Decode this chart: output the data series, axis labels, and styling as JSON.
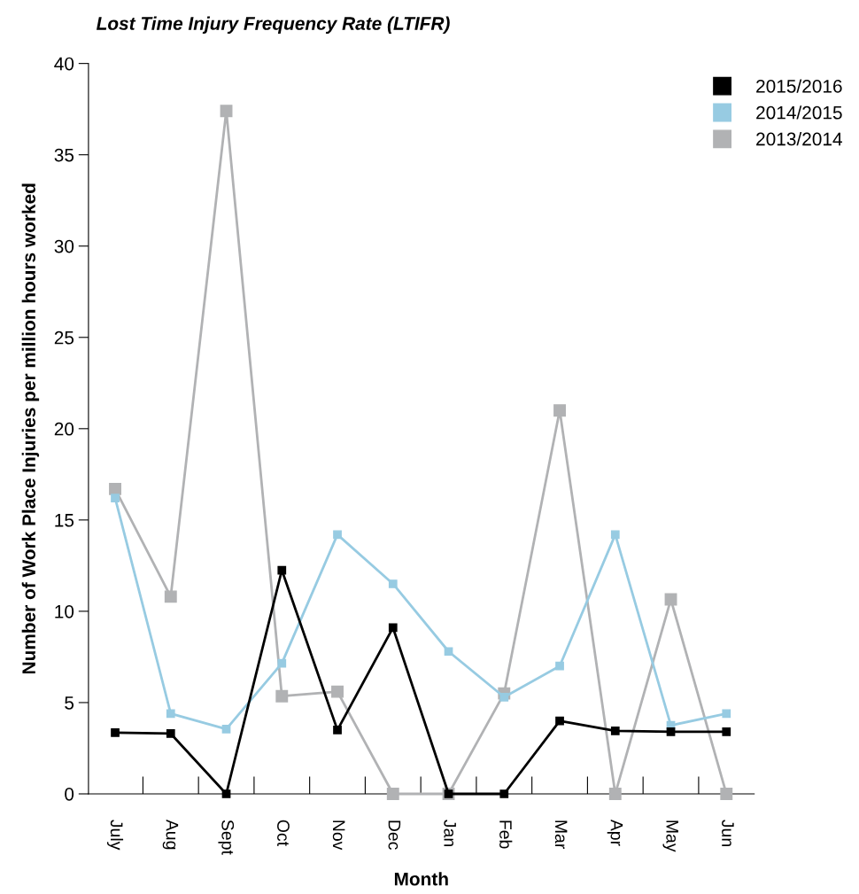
{
  "chart_data": {
    "type": "line",
    "title": "Lost Time Injury Frequency Rate (LTIFR)",
    "xlabel": "Month",
    "ylabel": "Number of Work Place Injuries per million hours worked",
    "categories": [
      "July",
      "Aug",
      "Sept",
      "Oct",
      "Nov",
      "Dec",
      "Jan",
      "Feb",
      "Mar",
      "Apr",
      "May",
      "Jun"
    ],
    "series": [
      {
        "name": "2013/2014",
        "color": "#b1b2b4",
        "values": [
          16.7,
          10.8,
          37.4,
          5.35,
          5.6,
          0,
          0,
          5.5,
          21.0,
          0,
          10.65,
          0
        ]
      },
      {
        "name": "2014/2015",
        "color": "#97cbe2",
        "values": [
          16.2,
          4.4,
          3.55,
          7.15,
          14.2,
          11.5,
          7.8,
          5.3,
          7.0,
          14.2,
          3.75,
          4.4
        ]
      },
      {
        "name": "2015/2016",
        "color": "#000000",
        "values": [
          3.35,
          3.3,
          0,
          12.25,
          3.5,
          9.1,
          0,
          0,
          4.0,
          3.45,
          3.4,
          3.4
        ]
      }
    ],
    "ylim": [
      0,
      40
    ],
    "yticks": [
      0,
      5,
      10,
      15,
      20,
      25,
      30,
      35,
      40
    ],
    "grid": false,
    "legend": "top right",
    "marker": "square",
    "line_style": "solid"
  }
}
